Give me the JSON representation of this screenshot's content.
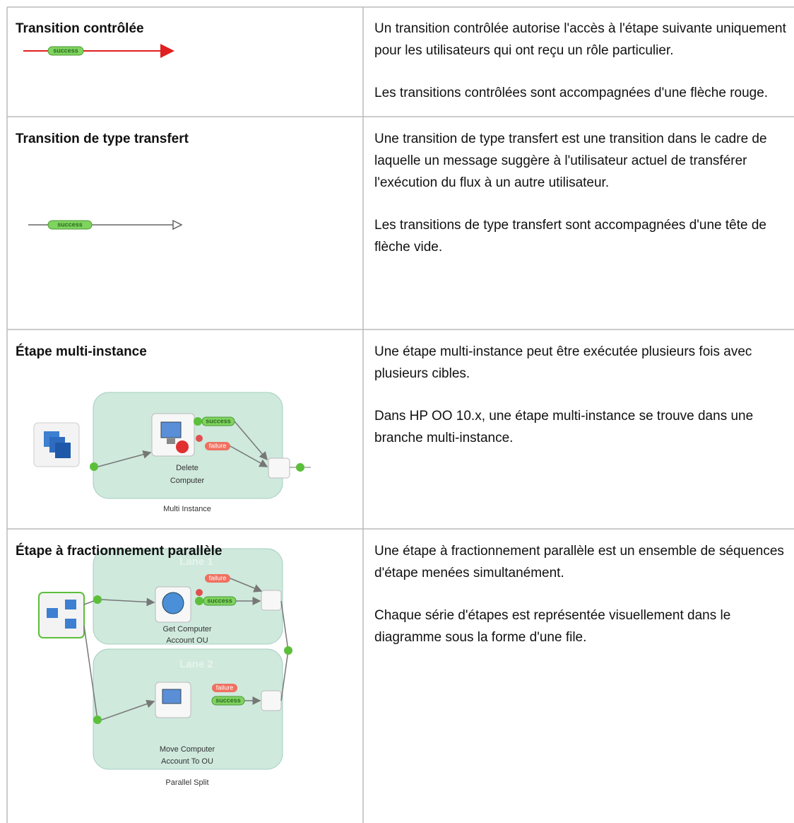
{
  "table": {
    "rows": [
      {
        "term": "Transition contrôlée",
        "description": [
          "Un transition contrôlée autorise l'accès à l'étape suivante uniquement pour les utilisateurs qui ont reçu un rôle particulier.",
          "Les transitions contrôlées sont accompagnées d'une flèche rouge."
        ],
        "diagram": {
          "labels": [
            "success"
          ]
        }
      },
      {
        "term": "Transition de type transfert",
        "description": [
          "Une transition de type transfert est une transition dans le cadre de laquelle un message suggère à l'utilisateur actuel de transférer l'exécution du flux à un autre utilisateur.",
          "Les transitions de type transfert sont accompagnées d'une tête de flèche vide."
        ],
        "diagram": {
          "labels": [
            "success"
          ]
        }
      },
      {
        "term": "Étape multi-instance",
        "description": [
          "Une étape multi-instance peut être exécutée plusieurs fois avec plusieurs cibles.",
          "Dans HP OO 10.x, une étape multi-instance se trouve dans une branche multi-instance."
        ],
        "diagram": {
          "labels": [
            "success",
            "failure",
            "Delete",
            "Computer",
            "Multi Instance"
          ]
        }
      },
      {
        "term": "Étape à fractionnement parallèle",
        "description": [
          "Une étape à fractionnement parallèle est un ensemble de séquences d'étape menées simultanément.",
          "Chaque série d'étapes est représentée visuellement dans le diagramme sous la forme d'une file."
        ],
        "diagram": {
          "labels": [
            "Lane 1",
            "failure",
            "success",
            "Get Computer",
            "Account OU",
            "Lane 2",
            "failure",
            "success",
            "Move Computer",
            "Account To OU",
            "Parallel Split"
          ]
        }
      }
    ]
  }
}
